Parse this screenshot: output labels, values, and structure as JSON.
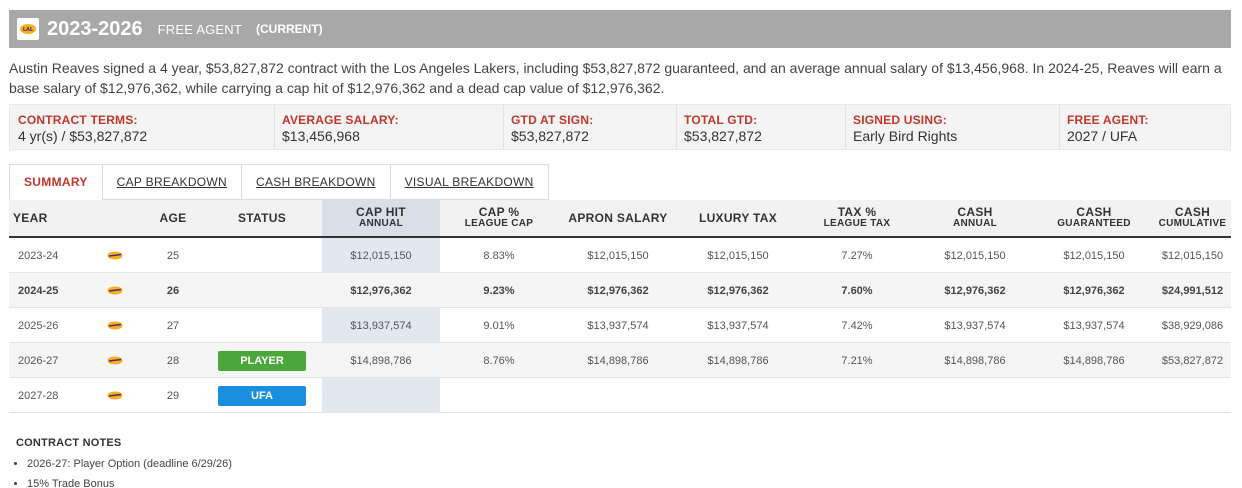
{
  "header": {
    "years": "2023-2026",
    "status": "FREE AGENT",
    "current": "(CURRENT)",
    "team_logo_icon": "lakers-logo-icon"
  },
  "summary": "Austin Reaves signed a 4 year, $53,827,872 contract with the Los Angeles Lakers, including $53,827,872 guaranteed, and an average annual salary of $13,456,968. In 2024-25, Reaves will earn a base salary of $12,976,362, while carrying a cap hit of $12,976,362 and a dead cap value of $12,976,362.",
  "terms": [
    {
      "label": "CONTRACT TERMS:",
      "value": "4 yr(s) / $53,827,872"
    },
    {
      "label": "AVERAGE SALARY:",
      "value": "$13,456,968"
    },
    {
      "label": "GTD AT SIGN:",
      "value": "$53,827,872"
    },
    {
      "label": "TOTAL GTD:",
      "value": "$53,827,872"
    },
    {
      "label": "SIGNED USING:",
      "value": "Early Bird Rights"
    },
    {
      "label": "FREE AGENT:",
      "value": "2027 / UFA"
    }
  ],
  "tabs": [
    "SUMMARY",
    "CAP BREAKDOWN",
    "CASH BREAKDOWN",
    "VISUAL BREAKDOWN"
  ],
  "table": {
    "headers": {
      "year": "YEAR",
      "age": "AGE",
      "status": "STATUS",
      "cap_hit": "CAP HIT",
      "cap_hit_sub": "ANNUAL",
      "cap_pct": "CAP %",
      "cap_pct_sub": "LEAGUE CAP",
      "apron": "APRON SALARY",
      "lux": "LUXURY TAX",
      "tax_pct": "TAX %",
      "tax_pct_sub": "LEAGUE TAX",
      "cash_annual": "CASH",
      "cash_annual_sub": "ANNUAL",
      "cash_gtd": "CASH",
      "cash_gtd_sub": "GUARANTEED",
      "cash_cum": "CASH",
      "cash_cum_sub": "CUMULATIVE"
    },
    "rows": [
      {
        "year": "2023-24",
        "age": "25",
        "status": "",
        "cap_hit": "$12,015,150",
        "cap_pct": "8.83%",
        "apron": "$12,015,150",
        "lux": "$12,015,150",
        "tax_pct": "7.27%",
        "cash_annual": "$12,015,150",
        "cash_gtd": "$12,015,150",
        "cash_cum": "$12,015,150"
      },
      {
        "year": "2024-25",
        "age": "26",
        "status": "",
        "cap_hit": "$12,976,362",
        "cap_pct": "9.23%",
        "apron": "$12,976,362",
        "lux": "$12,976,362",
        "tax_pct": "7.60%",
        "cash_annual": "$12,976,362",
        "cash_gtd": "$12,976,362",
        "cash_cum": "$24,991,512"
      },
      {
        "year": "2025-26",
        "age": "27",
        "status": "",
        "cap_hit": "$13,937,574",
        "cap_pct": "9.01%",
        "apron": "$13,937,574",
        "lux": "$13,937,574",
        "tax_pct": "7.42%",
        "cash_annual": "$13,937,574",
        "cash_gtd": "$13,937,574",
        "cash_cum": "$38,929,086"
      },
      {
        "year": "2026-27",
        "age": "28",
        "status": "PLAYER",
        "cap_hit": "$14,898,786",
        "cap_pct": "8.76%",
        "apron": "$14,898,786",
        "lux": "$14,898,786",
        "tax_pct": "7.21%",
        "cash_annual": "$14,898,786",
        "cash_gtd": "$14,898,786",
        "cash_cum": "$53,827,872"
      },
      {
        "year": "2027-28",
        "age": "29",
        "status": "UFA",
        "cap_hit": "",
        "cap_pct": "",
        "apron": "",
        "lux": "",
        "tax_pct": "",
        "cash_annual": "",
        "cash_gtd": "",
        "cash_cum": ""
      }
    ]
  },
  "notes": {
    "title": "CONTRACT NOTES",
    "items": [
      "2026-27: Player Option (deadline 6/29/26)",
      "15% Trade Bonus"
    ]
  },
  "colors": {
    "header_bg": "#a8a8a8",
    "label_red": "#c3362b",
    "player_badge": "#4aa83a",
    "ufa_badge": "#1a8fe0",
    "cap_column_bg": "#e3e8ee"
  }
}
